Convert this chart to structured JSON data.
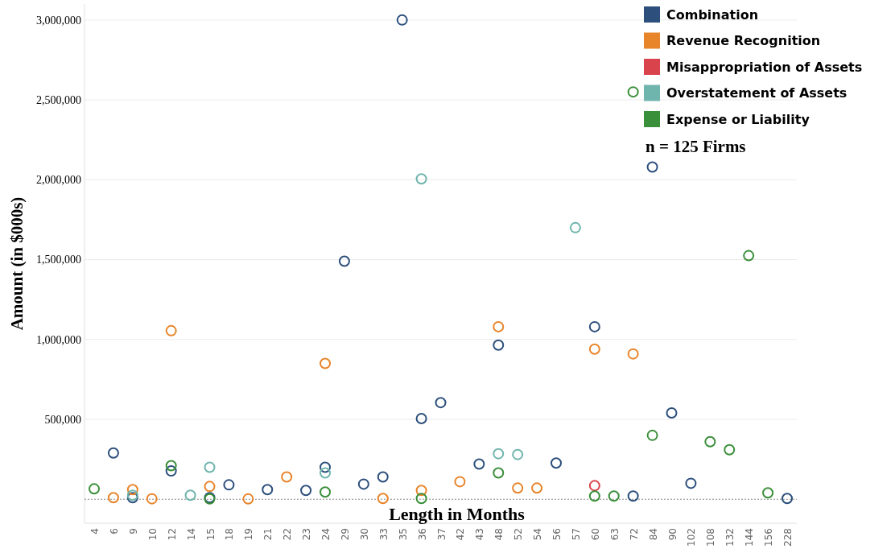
{
  "chart_data": {
    "type": "scatter",
    "xlabel": "Length in Months",
    "ylabel": "Amount (in $000s)",
    "categories": [
      "4",
      "6",
      "9",
      "10",
      "12",
      "14",
      "15",
      "18",
      "19",
      "21",
      "22",
      "23",
      "24",
      "29",
      "30",
      "33",
      "35",
      "36",
      "37",
      "42",
      "43",
      "48",
      "52",
      "54",
      "56",
      "57",
      "60",
      "63",
      "72",
      "84",
      "90",
      "102",
      "108",
      "132",
      "144",
      "156",
      "228"
    ],
    "ylim": [
      -150000,
      3100000
    ],
    "yticks": [
      {
        "value": 500000,
        "label": "500,000"
      },
      {
        "value": 1000000,
        "label": "1,000,000"
      },
      {
        "value": 1500000,
        "label": "1,500,000"
      },
      {
        "value": 2000000,
        "label": "2,000,000"
      },
      {
        "value": 2500000,
        "label": "2,500,000"
      },
      {
        "value": 3000000,
        "label": "3,000,000"
      }
    ],
    "grid": "y",
    "marker": "circle",
    "legend": "top right",
    "ref_lines": [
      {
        "axis": "y",
        "value": 0,
        "color": "#888888",
        "line_style": "dotted"
      }
    ],
    "annotations": [
      "n = 125 Firms"
    ],
    "series": [
      {
        "name": "Combination",
        "color": "#2c4f7c",
        "x": [
          "6",
          "9",
          "12",
          "15",
          "18",
          "21",
          "23",
          "24",
          "29",
          "30",
          "33",
          "35",
          "36",
          "37",
          "43",
          "48",
          "56",
          "60",
          "72",
          "84",
          "90",
          "102",
          "228"
        ],
        "values": [
          290000,
          10000,
          177000,
          10000,
          90000,
          60000,
          55000,
          200000,
          1490000,
          95000,
          140000,
          3000000,
          505000,
          605000,
          220000,
          965000,
          227000,
          1080000,
          20000,
          2080000,
          540000,
          100000,
          5000
        ]
      },
      {
        "name": "Revenue Recognition",
        "color": "#e8842a",
        "x": [
          "6",
          "9",
          "10",
          "12",
          "15",
          "19",
          "22",
          "24",
          "33",
          "36",
          "42",
          "48",
          "52",
          "54",
          "60",
          "72"
        ],
        "values": [
          10000,
          60000,
          3000,
          1055000,
          80000,
          2000,
          140000,
          850000,
          5000,
          55000,
          110000,
          1080000,
          70000,
          70000,
          940000,
          910000
        ]
      },
      {
        "name": "Misappropriation of Assets",
        "color": "#d9434b",
        "x": [
          "60"
        ],
        "values": [
          85000
        ]
      },
      {
        "name": "Overstatement of Assets",
        "color": "#6fb5ad",
        "x": [
          "9",
          "14",
          "15",
          "24",
          "36",
          "48",
          "52",
          "57"
        ],
        "values": [
          25000,
          25000,
          200000,
          165000,
          2005000,
          285000,
          280000,
          1700000
        ]
      },
      {
        "name": "Expense or Liability",
        "color": "#3a8f3a",
        "x": [
          "4",
          "12",
          "15",
          "24",
          "36",
          "48",
          "60",
          "63",
          "72",
          "84",
          "108",
          "132",
          "144",
          "156"
        ],
        "values": [
          65000,
          210000,
          2000,
          45000,
          5000,
          165000,
          20000,
          20000,
          2550000,
          400000,
          360000,
          310000,
          1525000,
          40000
        ]
      }
    ]
  }
}
